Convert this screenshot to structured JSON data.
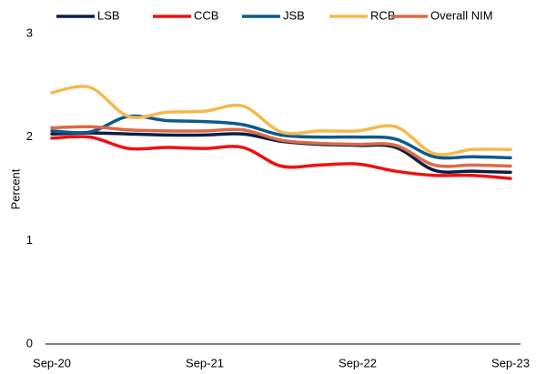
{
  "chart_data": {
    "type": "line",
    "y_label": "Percent",
    "categories": [
      "Sep-20",
      null,
      null,
      null,
      "Sep-21",
      null,
      null,
      null,
      "Sep-22",
      null,
      null,
      null,
      "Sep-23"
    ],
    "series": [
      {
        "name": "LSB",
        "color": "#0b1f44",
        "values": [
          2.03,
          2.04,
          2.03,
          2.02,
          2.02,
          2.03,
          1.96,
          1.93,
          1.92,
          1.9,
          1.68,
          1.67,
          1.66
        ]
      },
      {
        "name": "CCB",
        "color": "#ee1111",
        "values": [
          1.99,
          2.0,
          1.89,
          1.9,
          1.89,
          1.9,
          1.72,
          1.73,
          1.74,
          1.67,
          1.63,
          1.63,
          1.6
        ]
      },
      {
        "name": "JSB",
        "color": "#0e5a8a",
        "values": [
          2.06,
          2.05,
          2.2,
          2.16,
          2.15,
          2.12,
          2.02,
          2.0,
          2.0,
          1.98,
          1.81,
          1.81,
          1.8
        ]
      },
      {
        "name": "RCB",
        "color": "#f5b94d",
        "values": [
          2.43,
          2.48,
          2.2,
          2.24,
          2.25,
          2.3,
          2.05,
          2.06,
          2.06,
          2.1,
          1.84,
          1.88,
          1.88
        ]
      },
      {
        "name": "Overall NIM",
        "color": "#dc6a48",
        "values": [
          2.09,
          2.1,
          2.07,
          2.06,
          2.06,
          2.07,
          1.97,
          1.94,
          1.93,
          1.92,
          1.73,
          1.73,
          1.72
        ]
      }
    ],
    "ylim": [
      0,
      3
    ],
    "yticks": [
      0,
      1,
      2,
      3
    ],
    "grid": false,
    "legend": "top"
  }
}
